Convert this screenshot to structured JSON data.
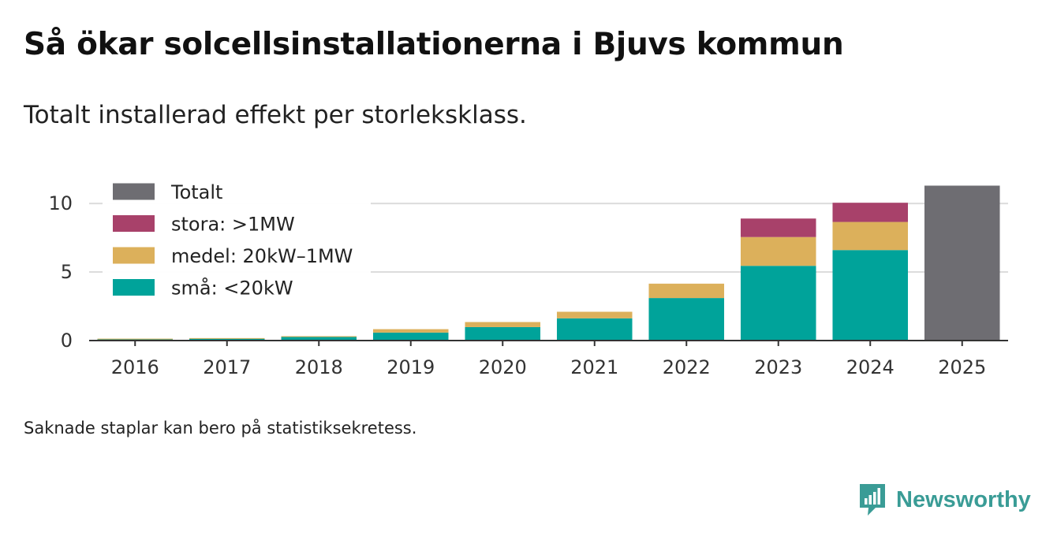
{
  "title": "Så ökar solcellsinstallationerna i Bjuvs kommun",
  "subtitle": "Totalt installerad effekt per storleksklass.",
  "footnote": "Saknade staplar kan bero på statistiksekretess.",
  "brand": {
    "name": "Newsworthy",
    "color": "#3a9c96"
  },
  "chart_data": {
    "type": "bar",
    "stacked": true,
    "title": "Så ökar solcellsinstallationerna i Bjuvs kommun",
    "subtitle": "Totalt installerad effekt per storleksklass.",
    "xlabel": "",
    "ylabel": "",
    "ylim": [
      0,
      11.5
    ],
    "yticks": [
      0,
      5,
      10
    ],
    "grid": true,
    "legend_position": "top-left",
    "categories": [
      "2016",
      "2017",
      "2018",
      "2019",
      "2020",
      "2021",
      "2022",
      "2023",
      "2024",
      "2025"
    ],
    "series": [
      {
        "name": "små: <20kW",
        "color": "#00a39a",
        "values": [
          0.12,
          0.15,
          0.26,
          0.58,
          0.98,
          1.62,
          3.1,
          5.45,
          6.6,
          null
        ]
      },
      {
        "name": "medel: 20kW–1MW",
        "color": "#dcb05b",
        "values": [
          0.02,
          0.03,
          0.06,
          0.25,
          0.37,
          0.48,
          1.05,
          2.1,
          2.05,
          null
        ]
      },
      {
        "name": "stora: >1MW",
        "color": "#a8416a",
        "values": [
          null,
          null,
          null,
          null,
          null,
          null,
          null,
          1.35,
          1.4,
          null
        ]
      },
      {
        "name": "Totalt",
        "color": "#6e6d72",
        "values": [
          null,
          null,
          null,
          null,
          null,
          null,
          null,
          null,
          null,
          11.3
        ]
      }
    ],
    "legend": [
      "Totalt",
      "stora: >1MW",
      "medel: 20kW–1MW",
      "små: <20kW"
    ]
  }
}
